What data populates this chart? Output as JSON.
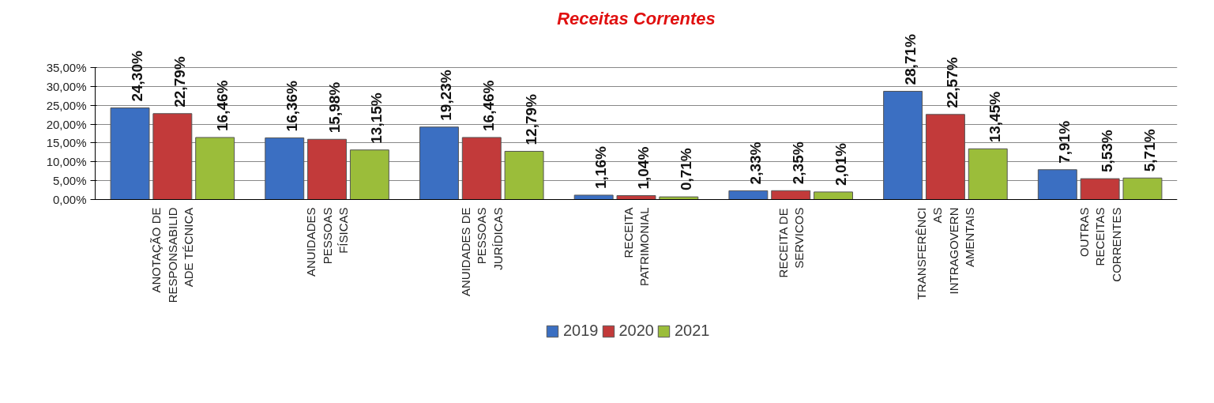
{
  "chart_data": {
    "type": "bar",
    "title": "Receitas Correntes",
    "categories": [
      "ANOTAÇÃO DE\nRESPONSABILID\nADE TÉCNICA",
      "ANUIDADES\nPESSOAS\nFÍSICAS",
      "ANUIDADES DE\nPESSOAS\nJURÍDICAS",
      "RECEITA\nPATRIMONIAL",
      "RECEITA DE\nSERVICOS",
      "TRANSFERÊNCI\nAS\nINTRAGOVERN\nAMENTAIS",
      "OUTRAS\nRECEITAS\nCORRENTES"
    ],
    "series": [
      {
        "name": "2019",
        "color": "#3b6fc2",
        "values": [
          24.3,
          16.36,
          19.23,
          1.16,
          2.33,
          28.71,
          7.91
        ],
        "value_labels": [
          "24,30%",
          "16,36%",
          "19,23%",
          "1,16%",
          "2,33%",
          "28,71%",
          "7,91%"
        ]
      },
      {
        "name": "2020",
        "color": "#c23a3a",
        "values": [
          22.79,
          15.98,
          16.46,
          1.04,
          2.35,
          22.57,
          5.53
        ],
        "value_labels": [
          "22,79%",
          "15,98%",
          "16,46%",
          "1,04%",
          "2,35%",
          "22,57%",
          "5,53%"
        ]
      },
      {
        "name": "2021",
        "color": "#9bbd3a",
        "values": [
          16.46,
          13.15,
          12.79,
          0.71,
          2.01,
          13.45,
          5.71
        ],
        "value_labels": [
          "16,46%",
          "13,15%",
          "12,79%",
          "0,71%",
          "2,01%",
          "13,45%",
          "5,71%"
        ]
      }
    ],
    "ylim": [
      0,
      35
    ],
    "yticks": [
      {
        "value": 0,
        "label": "0,00%"
      },
      {
        "value": 5,
        "label": "5,00%"
      },
      {
        "value": 10,
        "label": "10,00%"
      },
      {
        "value": 15,
        "label": "15,00%"
      },
      {
        "value": 20,
        "label": "20,00%"
      },
      {
        "value": 25,
        "label": "25,00%"
      },
      {
        "value": 30,
        "label": "30,00%"
      },
      {
        "value": 35,
        "label": "35,00%"
      }
    ],
    "grid": "y",
    "legend": "bottom"
  }
}
